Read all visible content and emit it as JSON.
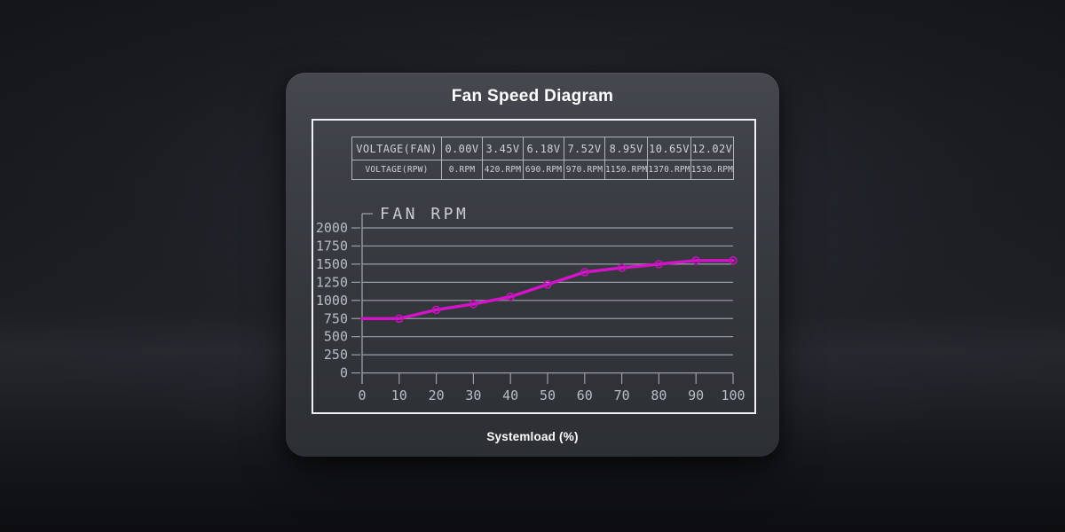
{
  "panel": {
    "title": "Fan Speed Diagram",
    "xlabel": "Systemload (%)"
  },
  "table": {
    "rows": [
      {
        "label": "VOLTAGE(FAN)",
        "values": [
          "0.00V",
          "3.45V",
          "6.18V",
          "7.52V",
          "8.95V",
          "10.65V",
          "12.02V"
        ]
      },
      {
        "label": "VOLTAGE(RPW)",
        "values": [
          "0.RPM",
          "420.RPM",
          "690.RPM",
          "970.RPM",
          "1150.RPM",
          "1370.RPM",
          "1530.RPM"
        ]
      }
    ]
  },
  "chart_data": {
    "type": "line",
    "title": "FAN RPM",
    "xlabel": "Systemload (%)",
    "ylabel": "FAN RPM",
    "x": [
      0,
      10,
      20,
      30,
      40,
      50,
      60,
      70,
      80,
      90,
      100
    ],
    "series": [
      {
        "name": "FAN RPM",
        "values": [
          750,
          750,
          870,
          950,
          1050,
          1220,
          1390,
          1450,
          1500,
          1550,
          1550
        ]
      }
    ],
    "x_ticks": [
      0,
      10,
      20,
      30,
      40,
      50,
      60,
      70,
      80,
      90,
      100
    ],
    "y_ticks": [
      0,
      250,
      500,
      750,
      1000,
      1250,
      1500,
      1750,
      2000
    ],
    "xlim": [
      0,
      100
    ],
    "ylim": [
      0,
      2000
    ],
    "grid": true,
    "legend": "none",
    "marker": "circle",
    "line_color": "#d513cb"
  },
  "colors": {
    "accent_line": "#d513cb",
    "marker_stroke": "#c014b6",
    "grid": "#9aa0a7",
    "axis_label": "#b9bec5",
    "chart_title_text": "#c8cdd3",
    "frame_border": "#eef0f3",
    "table_border": "#b0b5bc",
    "table_text": "#ced2d8",
    "title_text": "#ffffff"
  }
}
